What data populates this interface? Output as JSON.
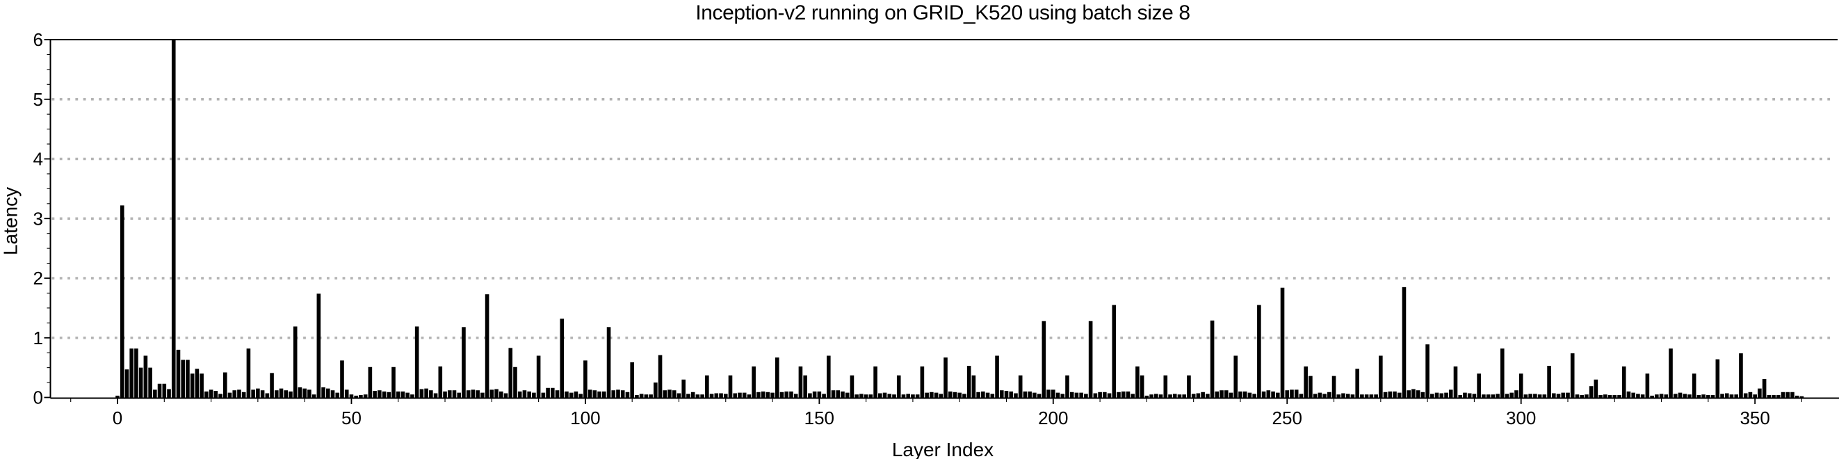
{
  "title": "Inception-v2 running on GRID_K520 using batch size 8",
  "chart_data": {
    "type": "bar",
    "title": "Inception-v2 running on GRID_K520 using batch size 8",
    "xlabel": "Layer Index",
    "ylabel": "Latency",
    "x_start": 0,
    "xlim": [
      -14,
      368
    ],
    "ylim": [
      0,
      6
    ],
    "x_ticks": [
      0,
      50,
      100,
      150,
      200,
      250,
      300,
      350
    ],
    "x_minor_tick_step": 10,
    "y_ticks": [
      0,
      1,
      2,
      3,
      4,
      5,
      6
    ],
    "y_gridlines": [
      1,
      2,
      3,
      4,
      5
    ],
    "grid": "horizontal-dotted",
    "legend_position": "none",
    "bar_color": "#000000",
    "grid_color": "#b3b3b3",
    "axis_color": "#000000",
    "max_bar_clipped_at_index": 12,
    "values": [
      0.03,
      3.22,
      0.47,
      0.82,
      0.82,
      0.5,
      0.7,
      0.5,
      0.13,
      0.23,
      0.23,
      0.14,
      6.0,
      0.8,
      0.63,
      0.63,
      0.4,
      0.48,
      0.4,
      0.1,
      0.13,
      0.11,
      0.06,
      0.42,
      0.08,
      0.12,
      0.13,
      0.09,
      0.82,
      0.13,
      0.15,
      0.12,
      0.07,
      0.41,
      0.12,
      0.15,
      0.12,
      0.1,
      1.19,
      0.17,
      0.15,
      0.13,
      0.05,
      1.74,
      0.17,
      0.15,
      0.12,
      0.08,
      0.62,
      0.13,
      0.05,
      0.03,
      0.04,
      0.05,
      0.51,
      0.11,
      0.12,
      0.1,
      0.09,
      0.51,
      0.1,
      0.1,
      0.08,
      0.05,
      1.19,
      0.14,
      0.15,
      0.12,
      0.07,
      0.52,
      0.1,
      0.12,
      0.12,
      0.08,
      1.18,
      0.12,
      0.13,
      0.12,
      0.08,
      1.73,
      0.13,
      0.14,
      0.1,
      0.07,
      0.83,
      0.51,
      0.1,
      0.12,
      0.1,
      0.08,
      0.7,
      0.08,
      0.16,
      0.16,
      0.12,
      1.32,
      0.1,
      0.08,
      0.1,
      0.06,
      0.62,
      0.13,
      0.12,
      0.1,
      0.1,
      1.18,
      0.12,
      0.13,
      0.12,
      0.09,
      0.59,
      0.04,
      0.06,
      0.05,
      0.05,
      0.25,
      0.71,
      0.12,
      0.13,
      0.12,
      0.07,
      0.3,
      0.06,
      0.09,
      0.05,
      0.05,
      0.37,
      0.06,
      0.07,
      0.07,
      0.06,
      0.37,
      0.07,
      0.08,
      0.08,
      0.05,
      0.52,
      0.09,
      0.1,
      0.09,
      0.08,
      0.67,
      0.09,
      0.1,
      0.1,
      0.06,
      0.52,
      0.37,
      0.07,
      0.1,
      0.1,
      0.06,
      0.7,
      0.12,
      0.12,
      0.1,
      0.08,
      0.37,
      0.05,
      0.06,
      0.05,
      0.05,
      0.52,
      0.07,
      0.08,
      0.06,
      0.05,
      0.37,
      0.05,
      0.06,
      0.05,
      0.05,
      0.52,
      0.08,
      0.09,
      0.08,
      0.06,
      0.67,
      0.1,
      0.09,
      0.08,
      0.06,
      0.53,
      0.37,
      0.09,
      0.1,
      0.08,
      0.06,
      0.7,
      0.12,
      0.11,
      0.1,
      0.07,
      0.37,
      0.1,
      0.1,
      0.08,
      0.06,
      1.28,
      0.13,
      0.13,
      0.08,
      0.06,
      0.37,
      0.09,
      0.08,
      0.08,
      0.06,
      1.28,
      0.07,
      0.09,
      0.09,
      0.07,
      1.55,
      0.09,
      0.1,
      0.1,
      0.06,
      0.52,
      0.37,
      0.03,
      0.05,
      0.06,
      0.05,
      0.37,
      0.05,
      0.06,
      0.05,
      0.05,
      0.37,
      0.06,
      0.07,
      0.09,
      0.06,
      1.29,
      0.1,
      0.12,
      0.12,
      0.08,
      0.7,
      0.1,
      0.1,
      0.08,
      0.06,
      1.55,
      0.1,
      0.12,
      0.1,
      0.08,
      1.84,
      0.12,
      0.13,
      0.13,
      0.06,
      0.52,
      0.36,
      0.06,
      0.08,
      0.06,
      0.09,
      0.36,
      0.05,
      0.07,
      0.06,
      0.05,
      0.48,
      0.05,
      0.05,
      0.05,
      0.05,
      0.7,
      0.09,
      0.1,
      0.1,
      0.08,
      1.85,
      0.12,
      0.14,
      0.12,
      0.09,
      0.89,
      0.06,
      0.08,
      0.07,
      0.08,
      0.13,
      0.52,
      0.04,
      0.08,
      0.07,
      0.06,
      0.4,
      0.05,
      0.05,
      0.05,
      0.06,
      0.82,
      0.06,
      0.08,
      0.12,
      0.4,
      0.05,
      0.06,
      0.06,
      0.05,
      0.05,
      0.53,
      0.07,
      0.06,
      0.08,
      0.08,
      0.74,
      0.05,
      0.04,
      0.05,
      0.19,
      0.3,
      0.04,
      0.05,
      0.04,
      0.04,
      0.04,
      0.52,
      0.1,
      0.08,
      0.06,
      0.05,
      0.4,
      0.03,
      0.05,
      0.06,
      0.05,
      0.82,
      0.06,
      0.08,
      0.06,
      0.05,
      0.4,
      0.04,
      0.05,
      0.04,
      0.04,
      0.64,
      0.06,
      0.07,
      0.05,
      0.05,
      0.74,
      0.07,
      0.09,
      0.05,
      0.15,
      0.31,
      0.04,
      0.04,
      0.04,
      0.09,
      0.09,
      0.09,
      0.03,
      0.02
    ]
  }
}
